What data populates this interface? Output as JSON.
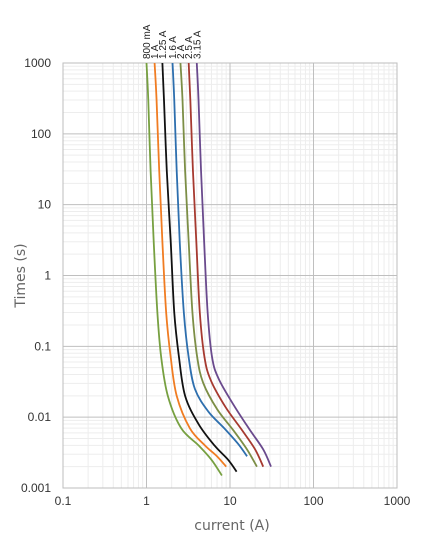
{
  "chart_data": {
    "type": "line",
    "xlabel": "current (A)",
    "ylabel": "Times  (s)",
    "x_scale": "log",
    "y_scale": "log",
    "xlim": [
      0.1,
      1000
    ],
    "ylim": [
      0.001,
      1000
    ],
    "grid": true,
    "x_ticks": [
      "0.1",
      "1",
      "10",
      "100",
      "1000"
    ],
    "y_ticks": [
      "1000",
      "100",
      "10",
      "1",
      "0.1",
      "0.01",
      "0.001"
    ],
    "series": [
      {
        "name": "800 mA",
        "color": "#77a041",
        "points": [
          [
            1.0,
            1000
          ],
          [
            1.05,
            300
          ],
          [
            1.12,
            30
          ],
          [
            1.22,
            3
          ],
          [
            1.35,
            0.3
          ],
          [
            1.5,
            0.07
          ],
          [
            1.8,
            0.02
          ],
          [
            2.6,
            0.007
          ],
          [
            4.2,
            0.004
          ],
          [
            6.0,
            0.0025
          ],
          [
            8.0,
            0.0015
          ]
        ]
      },
      {
        "name": "1 A",
        "color": "#f07c22",
        "points": [
          [
            1.25,
            1000
          ],
          [
            1.32,
            300
          ],
          [
            1.42,
            30
          ],
          [
            1.55,
            3
          ],
          [
            1.72,
            0.3
          ],
          [
            1.95,
            0.07
          ],
          [
            2.3,
            0.02
          ],
          [
            3.3,
            0.007
          ],
          [
            5.0,
            0.004
          ],
          [
            7.0,
            0.0028
          ],
          [
            9.0,
            0.002
          ]
        ]
      },
      {
        "name": "1.25 A",
        "color": "#111111",
        "points": [
          [
            1.55,
            1000
          ],
          [
            1.62,
            300
          ],
          [
            1.75,
            30
          ],
          [
            1.95,
            3
          ],
          [
            2.15,
            0.3
          ],
          [
            2.45,
            0.07
          ],
          [
            2.9,
            0.02
          ],
          [
            4.2,
            0.008
          ],
          [
            6.5,
            0.004
          ],
          [
            9.5,
            0.0025
          ],
          [
            12.0,
            0.0017
          ]
        ]
      },
      {
        "name": "1.6 A",
        "color": "#2e6fae",
        "points": [
          [
            2.05,
            1000
          ],
          [
            2.15,
            300
          ],
          [
            2.3,
            30
          ],
          [
            2.5,
            3
          ],
          [
            2.8,
            0.3
          ],
          [
            3.2,
            0.07
          ],
          [
            3.8,
            0.025
          ],
          [
            5.5,
            0.012
          ],
          [
            8.5,
            0.007
          ],
          [
            12.5,
            0.0042
          ],
          [
            16.0,
            0.0028
          ]
        ]
      },
      {
        "name": "2 A",
        "color": "#7c8e46",
        "points": [
          [
            2.55,
            1000
          ],
          [
            2.7,
            300
          ],
          [
            2.9,
            30
          ],
          [
            3.2,
            3
          ],
          [
            3.55,
            0.3
          ],
          [
            4.05,
            0.07
          ],
          [
            4.8,
            0.03
          ],
          [
            7.0,
            0.013
          ],
          [
            11.0,
            0.0065
          ],
          [
            16.0,
            0.0035
          ],
          [
            21.0,
            0.002
          ]
        ]
      },
      {
        "name": "2.5 A",
        "color": "#a63a30",
        "points": [
          [
            3.2,
            1000
          ],
          [
            3.35,
            300
          ],
          [
            3.6,
            30
          ],
          [
            3.95,
            3
          ],
          [
            4.35,
            0.3
          ],
          [
            4.95,
            0.07
          ],
          [
            5.9,
            0.033
          ],
          [
            8.8,
            0.014
          ],
          [
            14.0,
            0.0065
          ],
          [
            20.0,
            0.0035
          ],
          [
            25.0,
            0.002
          ]
        ]
      },
      {
        "name": "3.15 A",
        "color": "#6a4a8d",
        "points": [
          [
            4.0,
            1000
          ],
          [
            4.2,
            300
          ],
          [
            4.5,
            30
          ],
          [
            4.9,
            3
          ],
          [
            5.4,
            0.3
          ],
          [
            6.1,
            0.07
          ],
          [
            7.3,
            0.035
          ],
          [
            11.0,
            0.015
          ],
          [
            17.0,
            0.0068
          ],
          [
            25.0,
            0.0035
          ],
          [
            31.0,
            0.002
          ]
        ]
      }
    ]
  }
}
